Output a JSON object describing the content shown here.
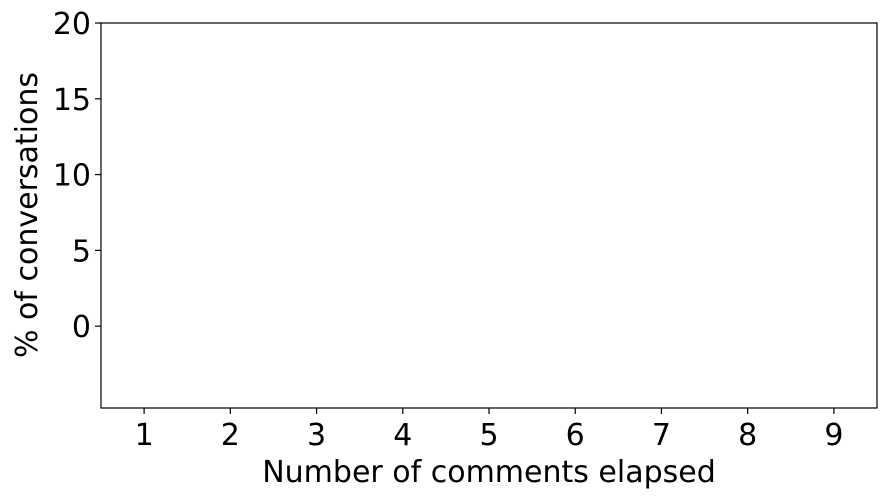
{
  "chart_data": {
    "type": "bar",
    "title": "",
    "xlabel": "Number of comments elapsed",
    "ylabel": "% of conversations",
    "categories": [
      "1",
      "2",
      "3",
      "4",
      "5",
      "6",
      "7",
      "8",
      "9"
    ],
    "x_ticks": [
      1,
      2,
      3,
      4,
      5,
      6,
      7,
      8,
      9
    ],
    "x_tick_labels": [
      "1",
      "2",
      "3",
      "4",
      "5",
      "6",
      "7",
      "8",
      "9"
    ],
    "y_ticks": [
      0,
      5,
      10,
      15,
      20
    ],
    "y_tick_labels": [
      "0",
      "5",
      "10",
      "15",
      "20"
    ],
    "xlim": [
      0.5,
      9.5
    ],
    "ylim": [
      -5.4,
      20
    ],
    "series": [],
    "grid": false,
    "colors": {
      "axis": "#000000",
      "background": "#ffffff"
    }
  }
}
